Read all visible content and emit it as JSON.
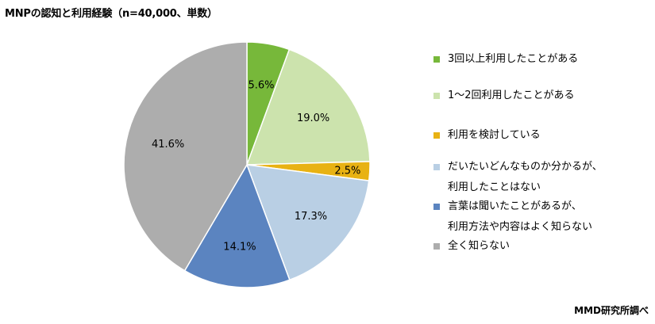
{
  "title": "MNPの認知と利用経験（n=40,000、単数）",
  "source": "MMD研究所調べ",
  "chart_data": {
    "type": "pie",
    "title": "MNPの認知と利用経験（n=40,000、単数）",
    "unit": "%",
    "legend_position": "right",
    "slices": [
      {
        "name": "3回以上利用したことがある",
        "lines": [
          "3回以上利用したことがある"
        ],
        "value": 5.6,
        "label": "5.6%",
        "color": "#77b83a"
      },
      {
        "name": "1～2回利用したことがある",
        "lines": [
          "1～2回利用したことがある"
        ],
        "value": 19.0,
        "label": "19.0%",
        "color": "#cce3ad"
      },
      {
        "name": "利用を検討している",
        "lines": [
          "利用を検討している"
        ],
        "value": 2.5,
        "label": "2.5%",
        "color": "#e8b213"
      },
      {
        "name": "だいたいどんなものか分かるが、利用したことはない",
        "lines": [
          "だいたいどんなものか分かるが、",
          "利用したことはない"
        ],
        "value": 17.3,
        "label": "17.3%",
        "color": "#b9cfe4"
      },
      {
        "name": "言葉は聞いたことがあるが、利用方法や内容はよく知らない",
        "lines": [
          "言葉は聞いたことがあるが、",
          "利用方法や内容はよく知らない"
        ],
        "value": 14.1,
        "label": "14.1%",
        "color": "#5b84c0"
      },
      {
        "name": "全く知らない",
        "lines": [
          "全く知らない"
        ],
        "value": 41.6,
        "label": "41.6%",
        "color": "#adadad"
      }
    ]
  }
}
